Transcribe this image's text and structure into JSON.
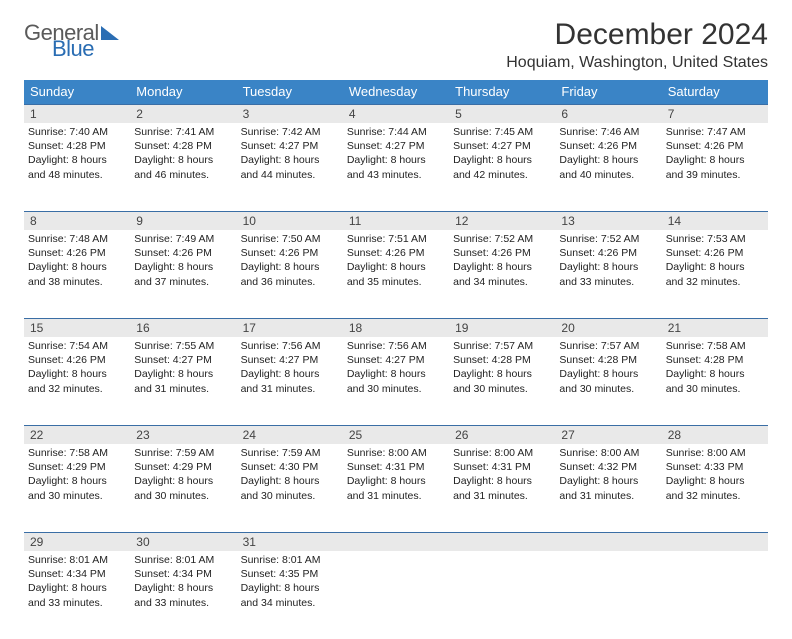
{
  "brand": {
    "word1": "General",
    "word2": "Blue"
  },
  "title": "December 2024",
  "location": "Hoquiam, Washington, United States",
  "colors": {
    "header_bg": "#3a84c6",
    "rule": "#3a6ea5",
    "daynum_bg": "#e9e9e9",
    "page_bg": "#ffffff",
    "text": "#333333"
  },
  "weekdays": [
    "Sunday",
    "Monday",
    "Tuesday",
    "Wednesday",
    "Thursday",
    "Friday",
    "Saturday"
  ],
  "weeks": [
    [
      {
        "n": "1",
        "sr": "Sunrise: 7:40 AM",
        "ss": "Sunset: 4:28 PM",
        "d1": "Daylight: 8 hours",
        "d2": "and 48 minutes."
      },
      {
        "n": "2",
        "sr": "Sunrise: 7:41 AM",
        "ss": "Sunset: 4:28 PM",
        "d1": "Daylight: 8 hours",
        "d2": "and 46 minutes."
      },
      {
        "n": "3",
        "sr": "Sunrise: 7:42 AM",
        "ss": "Sunset: 4:27 PM",
        "d1": "Daylight: 8 hours",
        "d2": "and 44 minutes."
      },
      {
        "n": "4",
        "sr": "Sunrise: 7:44 AM",
        "ss": "Sunset: 4:27 PM",
        "d1": "Daylight: 8 hours",
        "d2": "and 43 minutes."
      },
      {
        "n": "5",
        "sr": "Sunrise: 7:45 AM",
        "ss": "Sunset: 4:27 PM",
        "d1": "Daylight: 8 hours",
        "d2": "and 42 minutes."
      },
      {
        "n": "6",
        "sr": "Sunrise: 7:46 AM",
        "ss": "Sunset: 4:26 PM",
        "d1": "Daylight: 8 hours",
        "d2": "and 40 minutes."
      },
      {
        "n": "7",
        "sr": "Sunrise: 7:47 AM",
        "ss": "Sunset: 4:26 PM",
        "d1": "Daylight: 8 hours",
        "d2": "and 39 minutes."
      }
    ],
    [
      {
        "n": "8",
        "sr": "Sunrise: 7:48 AM",
        "ss": "Sunset: 4:26 PM",
        "d1": "Daylight: 8 hours",
        "d2": "and 38 minutes."
      },
      {
        "n": "9",
        "sr": "Sunrise: 7:49 AM",
        "ss": "Sunset: 4:26 PM",
        "d1": "Daylight: 8 hours",
        "d2": "and 37 minutes."
      },
      {
        "n": "10",
        "sr": "Sunrise: 7:50 AM",
        "ss": "Sunset: 4:26 PM",
        "d1": "Daylight: 8 hours",
        "d2": "and 36 minutes."
      },
      {
        "n": "11",
        "sr": "Sunrise: 7:51 AM",
        "ss": "Sunset: 4:26 PM",
        "d1": "Daylight: 8 hours",
        "d2": "and 35 minutes."
      },
      {
        "n": "12",
        "sr": "Sunrise: 7:52 AM",
        "ss": "Sunset: 4:26 PM",
        "d1": "Daylight: 8 hours",
        "d2": "and 34 minutes."
      },
      {
        "n": "13",
        "sr": "Sunrise: 7:52 AM",
        "ss": "Sunset: 4:26 PM",
        "d1": "Daylight: 8 hours",
        "d2": "and 33 minutes."
      },
      {
        "n": "14",
        "sr": "Sunrise: 7:53 AM",
        "ss": "Sunset: 4:26 PM",
        "d1": "Daylight: 8 hours",
        "d2": "and 32 minutes."
      }
    ],
    [
      {
        "n": "15",
        "sr": "Sunrise: 7:54 AM",
        "ss": "Sunset: 4:26 PM",
        "d1": "Daylight: 8 hours",
        "d2": "and 32 minutes."
      },
      {
        "n": "16",
        "sr": "Sunrise: 7:55 AM",
        "ss": "Sunset: 4:27 PM",
        "d1": "Daylight: 8 hours",
        "d2": "and 31 minutes."
      },
      {
        "n": "17",
        "sr": "Sunrise: 7:56 AM",
        "ss": "Sunset: 4:27 PM",
        "d1": "Daylight: 8 hours",
        "d2": "and 31 minutes."
      },
      {
        "n": "18",
        "sr": "Sunrise: 7:56 AM",
        "ss": "Sunset: 4:27 PM",
        "d1": "Daylight: 8 hours",
        "d2": "and 30 minutes."
      },
      {
        "n": "19",
        "sr": "Sunrise: 7:57 AM",
        "ss": "Sunset: 4:28 PM",
        "d1": "Daylight: 8 hours",
        "d2": "and 30 minutes."
      },
      {
        "n": "20",
        "sr": "Sunrise: 7:57 AM",
        "ss": "Sunset: 4:28 PM",
        "d1": "Daylight: 8 hours",
        "d2": "and 30 minutes."
      },
      {
        "n": "21",
        "sr": "Sunrise: 7:58 AM",
        "ss": "Sunset: 4:28 PM",
        "d1": "Daylight: 8 hours",
        "d2": "and 30 minutes."
      }
    ],
    [
      {
        "n": "22",
        "sr": "Sunrise: 7:58 AM",
        "ss": "Sunset: 4:29 PM",
        "d1": "Daylight: 8 hours",
        "d2": "and 30 minutes."
      },
      {
        "n": "23",
        "sr": "Sunrise: 7:59 AM",
        "ss": "Sunset: 4:29 PM",
        "d1": "Daylight: 8 hours",
        "d2": "and 30 minutes."
      },
      {
        "n": "24",
        "sr": "Sunrise: 7:59 AM",
        "ss": "Sunset: 4:30 PM",
        "d1": "Daylight: 8 hours",
        "d2": "and 30 minutes."
      },
      {
        "n": "25",
        "sr": "Sunrise: 8:00 AM",
        "ss": "Sunset: 4:31 PM",
        "d1": "Daylight: 8 hours",
        "d2": "and 31 minutes."
      },
      {
        "n": "26",
        "sr": "Sunrise: 8:00 AM",
        "ss": "Sunset: 4:31 PM",
        "d1": "Daylight: 8 hours",
        "d2": "and 31 minutes."
      },
      {
        "n": "27",
        "sr": "Sunrise: 8:00 AM",
        "ss": "Sunset: 4:32 PM",
        "d1": "Daylight: 8 hours",
        "d2": "and 31 minutes."
      },
      {
        "n": "28",
        "sr": "Sunrise: 8:00 AM",
        "ss": "Sunset: 4:33 PM",
        "d1": "Daylight: 8 hours",
        "d2": "and 32 minutes."
      }
    ],
    [
      {
        "n": "29",
        "sr": "Sunrise: 8:01 AM",
        "ss": "Sunset: 4:34 PM",
        "d1": "Daylight: 8 hours",
        "d2": "and 33 minutes."
      },
      {
        "n": "30",
        "sr": "Sunrise: 8:01 AM",
        "ss": "Sunset: 4:34 PM",
        "d1": "Daylight: 8 hours",
        "d2": "and 33 minutes."
      },
      {
        "n": "31",
        "sr": "Sunrise: 8:01 AM",
        "ss": "Sunset: 4:35 PM",
        "d1": "Daylight: 8 hours",
        "d2": "and 34 minutes."
      },
      null,
      null,
      null,
      null
    ]
  ]
}
